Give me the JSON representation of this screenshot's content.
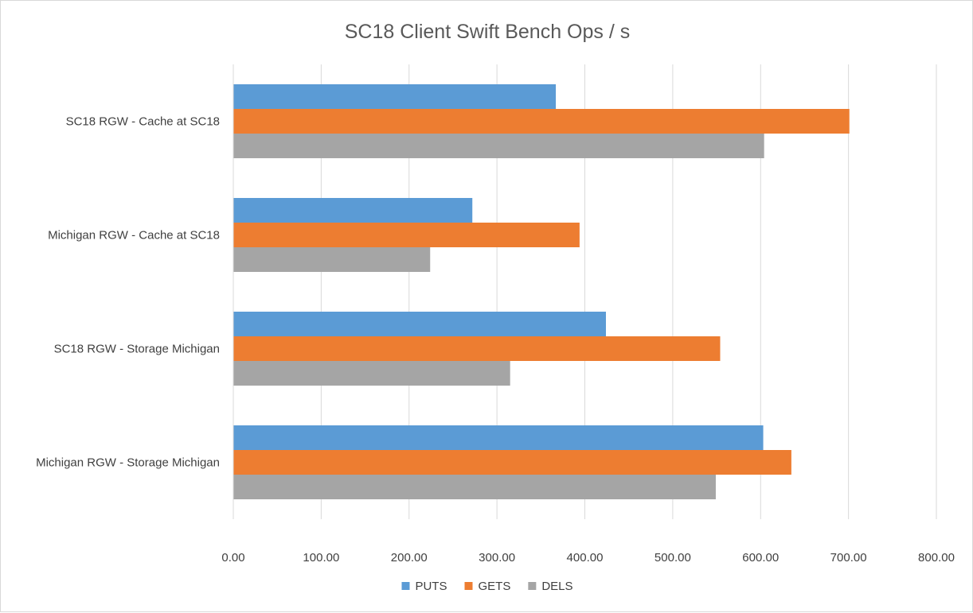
{
  "chart_data": {
    "type": "bar",
    "orientation": "horizontal",
    "title": "SC18 Client Swift Bench Ops / s",
    "xlabel": "",
    "ylabel": "",
    "categories": [
      "SC18 RGW - Cache at SC18",
      "Michigan RGW - Cache at SC18",
      "SC18 RGW - Storage Michigan",
      "Michigan RGW - Storage Michigan"
    ],
    "series": [
      {
        "name": "PUTS",
        "color": "#5b9bd5",
        "values": [
          367,
          272,
          424,
          603
        ]
      },
      {
        "name": "GETS",
        "color": "#ed7d31",
        "values": [
          701,
          394,
          554,
          635
        ]
      },
      {
        "name": "DELS",
        "color": "#a5a5a5",
        "values": [
          604,
          224,
          315,
          549
        ]
      }
    ],
    "xlim": [
      0,
      800
    ],
    "ticks": [
      "0.00",
      "100.00",
      "200.00",
      "300.00",
      "400.00",
      "500.00",
      "600.00",
      "700.00",
      "800.00"
    ],
    "grid": true,
    "legend_position": "bottom"
  }
}
